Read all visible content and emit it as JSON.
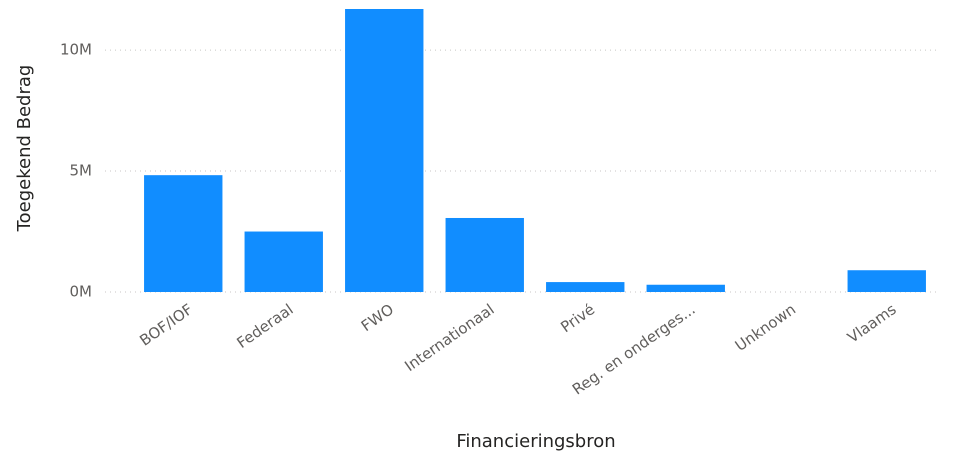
{
  "chart_data": {
    "type": "bar",
    "x_label": "Financieringsbron",
    "y_label": "Toegekend Bedrag",
    "categories": [
      "BOF/IOF",
      "Federaal",
      "FWO",
      "Internationaal",
      "Privé",
      "Reg. en onderges...",
      "Unknown",
      "Vlaams"
    ],
    "values": [
      4830000,
      2500000,
      11700000,
      3060000,
      410000,
      300000,
      0,
      900000
    ],
    "color": "#118dff",
    "ylim": [
      0,
      11700000
    ],
    "yticks": [
      {
        "value": 0,
        "label": "0M"
      },
      {
        "value": 5000000,
        "label": "5M"
      },
      {
        "value": 10000000,
        "label": "10M"
      }
    ],
    "grid": true
  }
}
